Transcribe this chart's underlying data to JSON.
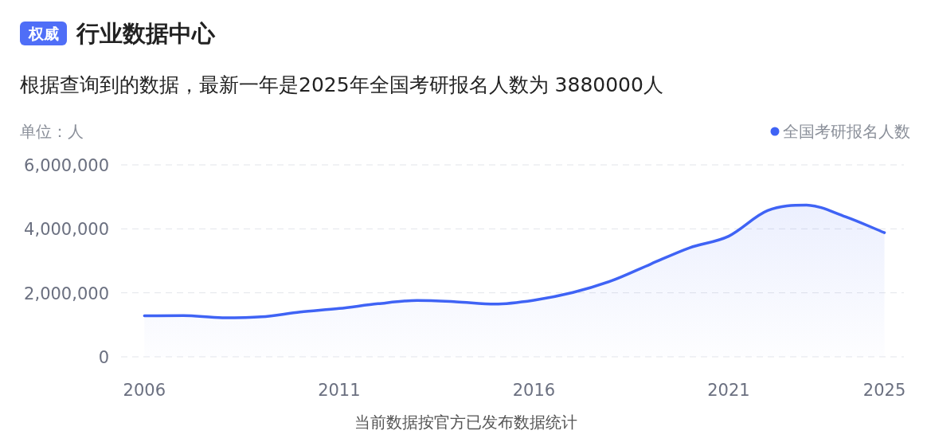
{
  "chart_data": {
    "type": "area",
    "title": "行业数据中心",
    "annotations": [
      "权威"
    ],
    "subtitle": "根据查询到的数据，最新一年是2025年全国考研报名人数为 3880000人",
    "ylabel": "单位：人",
    "xlabel": "当前数据按官方已发布数据统计",
    "x": [
      2006,
      2007,
      2008,
      2009,
      2010,
      2011,
      2012,
      2013,
      2014,
      2015,
      2016,
      2017,
      2018,
      2019,
      2020,
      2021,
      2022,
      2023,
      2024,
      2025
    ],
    "series": [
      {
        "name": "全国考研报名人数",
        "color": "#3f63f5",
        "values": [
          1280000,
          1290000,
          1220000,
          1250000,
          1400000,
          1510000,
          1660000,
          1760000,
          1720000,
          1650000,
          1770000,
          2010000,
          2380000,
          2900000,
          3410000,
          3770000,
          4570000,
          4740000,
          4380000,
          3880000
        ]
      }
    ],
    "xlim": [
      2005.4,
      2025.5
    ],
    "xticks": [
      2006,
      2011,
      2016,
      2021,
      2025
    ],
    "ylim": [
      0,
      6000000
    ],
    "yticks": [
      0,
      {
        "value": 2000000,
        "label": "2,000,000"
      },
      {
        "value": 4000000,
        "label": "4,000,000"
      },
      {
        "value": 6000000,
        "label": "6,000,000"
      }
    ],
    "grid": "y",
    "legend": "top right"
  }
}
